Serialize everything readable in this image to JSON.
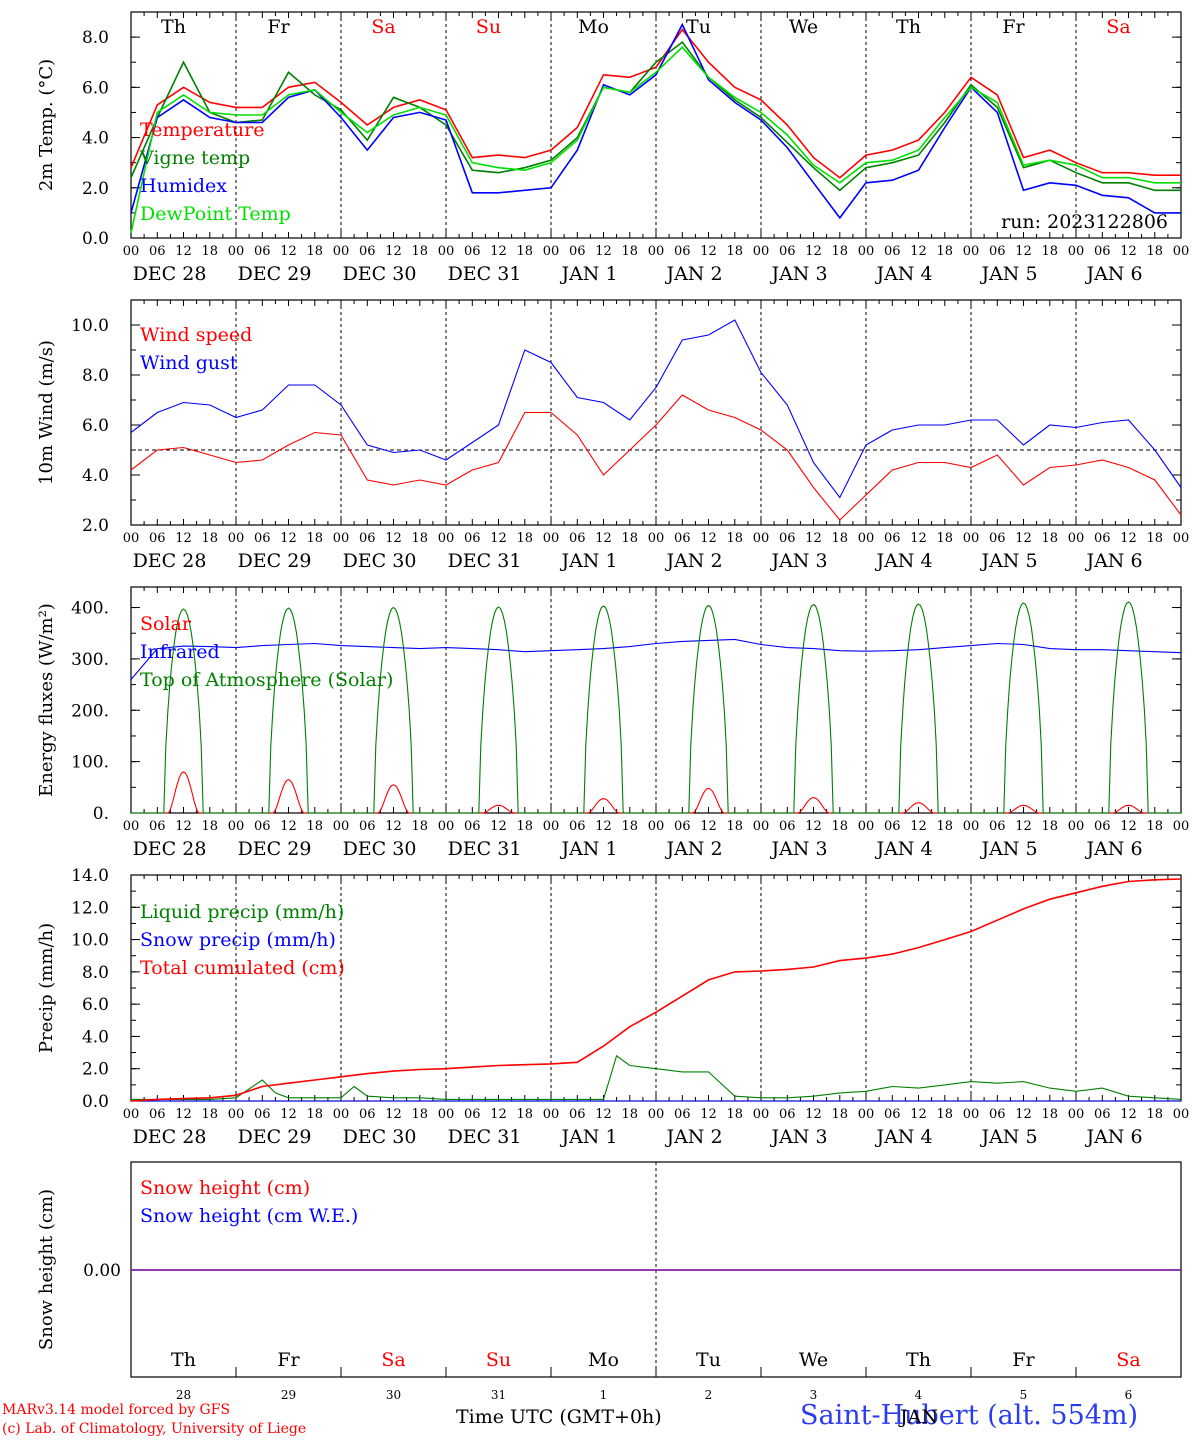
{
  "colors": {
    "red": "#ff0000",
    "darkgreen": "#008000",
    "blue": "#0000ff",
    "lightgreen": "#00e000",
    "axis": "#000000",
    "purple": "#8020a0"
  },
  "days": {
    "weekdays": [
      "Th",
      "Fr",
      "Sa",
      "Su",
      "Mo",
      "Tu",
      "We",
      "Th",
      "Fr",
      "Sa"
    ],
    "weekend_flags": [
      false,
      false,
      true,
      true,
      false,
      false,
      false,
      false,
      false,
      true
    ],
    "hours": [
      "00",
      "06",
      "12",
      "18"
    ],
    "date_labels": [
      "DEC 28",
      "DEC 29",
      "DEC 30",
      "DEC 31",
      "JAN 1",
      "JAN 2",
      "JAN 3",
      "JAN 4",
      "JAN 5",
      "JAN 6"
    ],
    "day_numbers": [
      "28",
      "29",
      "30",
      "31",
      "1",
      "2",
      "3",
      "4",
      "5",
      "6"
    ]
  },
  "run_label": "run: 2023122806",
  "footer": {
    "credit_line1": "MARv3.14 model forced by GFS",
    "credit_line2": "(c) Lab. of Climatology, University of Liege",
    "xlabel": "Time UTC (GMT+0h)",
    "month": "JAN",
    "station": "Saint-Hubert (alt. 554m)"
  },
  "chart_data": [
    {
      "type": "line",
      "ylabel": "2m Temp. (°C)",
      "ylim": [
        0,
        9
      ],
      "yticks": [
        0,
        2,
        4,
        6,
        8
      ],
      "tick_labels": [
        "0.0",
        "2.0",
        "4.0",
        "6.0",
        "8.0"
      ],
      "x_unit": "hours since DEC 28 00 UTC",
      "x_range": [
        0,
        240
      ],
      "series": [
        {
          "name": "Temperature",
          "color": "red",
          "x": [
            0,
            6,
            12,
            18,
            24,
            30,
            36,
            42,
            48,
            54,
            60,
            66,
            72,
            78,
            84,
            90,
            96,
            102,
            108,
            114,
            120,
            126,
            132,
            138,
            144,
            150,
            156,
            162,
            168,
            174,
            180,
            186,
            192,
            198,
            204,
            210,
            216,
            222,
            228,
            234,
            240
          ],
          "values": [
            2.8,
            5.3,
            6.0,
            5.4,
            5.2,
            5.2,
            6.0,
            6.2,
            5.4,
            4.5,
            5.2,
            5.5,
            5.1,
            3.2,
            3.3,
            3.2,
            3.5,
            4.4,
            6.5,
            6.4,
            6.8,
            8.3,
            7.0,
            6.0,
            5.5,
            4.5,
            3.2,
            2.4,
            3.3,
            3.5,
            3.9,
            5.0,
            6.4,
            5.7,
            3.2,
            3.5,
            3.0,
            2.6,
            2.6,
            2.5,
            2.5
          ]
        },
        {
          "name": "Vigne temp",
          "color": "darkgreen",
          "x": [
            0,
            6,
            12,
            18,
            24,
            30,
            36,
            42,
            48,
            54,
            60,
            66,
            72,
            78,
            84,
            90,
            96,
            102,
            108,
            114,
            120,
            126,
            132,
            138,
            144,
            150,
            156,
            162,
            168,
            174,
            180,
            186,
            192,
            198,
            204,
            210,
            216,
            222,
            228,
            234,
            240
          ],
          "values": [
            2.4,
            4.8,
            7.0,
            5.0,
            4.6,
            4.7,
            6.6,
            5.7,
            5.1,
            3.9,
            5.6,
            5.2,
            4.5,
            2.7,
            2.6,
            2.8,
            3.1,
            4.0,
            6.0,
            5.8,
            7.0,
            7.8,
            6.4,
            5.5,
            4.8,
            3.8,
            2.8,
            1.9,
            2.8,
            3.0,
            3.3,
            4.6,
            6.1,
            5.2,
            2.8,
            3.1,
            2.6,
            2.2,
            2.2,
            1.9,
            1.9
          ]
        },
        {
          "name": "Humidex",
          "color": "blue",
          "x": [
            0,
            6,
            12,
            18,
            24,
            30,
            36,
            42,
            48,
            54,
            60,
            66,
            72,
            78,
            84,
            90,
            96,
            102,
            108,
            114,
            120,
            126,
            132,
            138,
            144,
            150,
            156,
            162,
            168,
            174,
            180,
            186,
            192,
            198,
            204,
            210,
            216,
            222,
            228,
            234,
            240
          ],
          "values": [
            1.0,
            4.8,
            5.5,
            4.8,
            4.6,
            4.6,
            5.6,
            5.9,
            4.8,
            3.5,
            4.8,
            5.0,
            4.7,
            1.8,
            1.8,
            1.9,
            2.0,
            3.5,
            6.1,
            5.7,
            6.5,
            8.5,
            6.3,
            5.4,
            4.7,
            3.6,
            2.2,
            0.8,
            2.2,
            2.3,
            2.7,
            4.4,
            6.0,
            5.0,
            1.9,
            2.2,
            2.1,
            1.7,
            1.6,
            1.0,
            1.0
          ]
        },
        {
          "name": "DewPoint Temp",
          "color": "lightgreen",
          "x": [
            0,
            6,
            12,
            18,
            24,
            30,
            36,
            42,
            48,
            54,
            60,
            66,
            72,
            78,
            84,
            90,
            96,
            102,
            108,
            114,
            120,
            126,
            132,
            138,
            144,
            150,
            156,
            162,
            168,
            174,
            180,
            186,
            192,
            198,
            204,
            210,
            216,
            222,
            228,
            234,
            240
          ],
          "values": [
            0.2,
            5.0,
            5.7,
            5.0,
            4.9,
            4.9,
            5.7,
            5.9,
            5.0,
            4.2,
            4.9,
            5.2,
            4.9,
            3.0,
            2.8,
            2.7,
            3.0,
            3.9,
            6.0,
            5.8,
            6.6,
            7.6,
            6.4,
            5.6,
            5.0,
            4.1,
            2.9,
            2.2,
            3.0,
            3.1,
            3.5,
            4.8,
            6.0,
            5.4,
            2.9,
            3.1,
            2.9,
            2.4,
            2.4,
            2.2,
            2.2
          ]
        }
      ]
    },
    {
      "type": "line",
      "ylabel": "10m Wind (m/s)",
      "ylim": [
        2,
        11
      ],
      "yticks": [
        2,
        4,
        6,
        8,
        10
      ],
      "tick_labels": [
        "2.0",
        "4.0",
        "6.0",
        "8.0",
        "10.0"
      ],
      "reference_line": 5.0,
      "x_unit": "hours since DEC 28 00 UTC",
      "x_range": [
        0,
        240
      ],
      "series": [
        {
          "name": "Wind speed",
          "color": "red",
          "x": [
            0,
            6,
            12,
            18,
            24,
            30,
            36,
            42,
            48,
            54,
            60,
            66,
            72,
            78,
            84,
            90,
            96,
            102,
            108,
            114,
            120,
            126,
            132,
            138,
            144,
            150,
            156,
            162,
            168,
            174,
            180,
            186,
            192,
            198,
            204,
            210,
            216,
            222,
            228,
            234,
            240
          ],
          "values": [
            4.2,
            5.0,
            5.1,
            4.8,
            4.5,
            4.6,
            5.2,
            5.7,
            5.6,
            3.8,
            3.6,
            3.8,
            3.6,
            4.2,
            4.5,
            6.5,
            6.5,
            5.6,
            4.0,
            5.0,
            6.0,
            7.2,
            6.6,
            6.3,
            5.8,
            5.0,
            3.5,
            2.2,
            3.2,
            4.2,
            4.5,
            4.5,
            4.3,
            4.8,
            3.6,
            4.3,
            4.4,
            4.6,
            4.3,
            3.8,
            2.4
          ]
        },
        {
          "name": "Wind gust",
          "color": "blue",
          "x": [
            0,
            6,
            12,
            18,
            24,
            30,
            36,
            42,
            48,
            54,
            60,
            66,
            72,
            78,
            84,
            90,
            96,
            102,
            108,
            114,
            120,
            126,
            132,
            138,
            144,
            150,
            156,
            162,
            168,
            174,
            180,
            186,
            192,
            198,
            204,
            210,
            216,
            222,
            228,
            234,
            240
          ],
          "values": [
            5.7,
            6.5,
            6.9,
            6.8,
            6.3,
            6.6,
            7.6,
            7.6,
            6.8,
            5.2,
            4.9,
            5.0,
            4.6,
            5.3,
            6.0,
            9.0,
            8.5,
            7.1,
            6.9,
            6.2,
            7.5,
            9.4,
            9.6,
            10.2,
            8.1,
            6.8,
            4.5,
            3.1,
            5.2,
            5.8,
            6.0,
            6.0,
            6.2,
            6.2,
            5.2,
            6.0,
            5.9,
            6.1,
            6.2,
            5.0,
            3.5
          ]
        }
      ]
    },
    {
      "type": "line",
      "ylabel": "Energy fluxes (W/m²)",
      "ylim": [
        0,
        440
      ],
      "yticks": [
        0,
        100,
        200,
        300,
        400
      ],
      "tick_labels": [
        "0.",
        "100.",
        "200.",
        "300.",
        "400."
      ],
      "x_unit": "hours since DEC 28 00 UTC",
      "x_range": [
        0,
        240
      ],
      "series": [
        {
          "name": "Solar",
          "color": "red",
          "daily_peaks": [
            80,
            65,
            55,
            15,
            28,
            48,
            30,
            20,
            15,
            15
          ]
        },
        {
          "name": "Infrared",
          "color": "blue",
          "x": [
            0,
            6,
            12,
            18,
            24,
            30,
            36,
            42,
            48,
            54,
            60,
            66,
            72,
            78,
            84,
            90,
            96,
            102,
            108,
            114,
            120,
            126,
            132,
            138,
            144,
            150,
            156,
            162,
            168,
            174,
            180,
            186,
            192,
            198,
            204,
            210,
            216,
            222,
            228,
            234,
            240
          ],
          "values": [
            260,
            320,
            325,
            324,
            322,
            326,
            328,
            330,
            326,
            324,
            322,
            320,
            322,
            320,
            318,
            314,
            316,
            318,
            320,
            324,
            330,
            334,
            336,
            338,
            328,
            322,
            320,
            316,
            315,
            316,
            318,
            322,
            326,
            330,
            328,
            320,
            318,
            318,
            316,
            314,
            312
          ]
        },
        {
          "name": "Top of Atmosphere (Solar)",
          "color": "darkgreen",
          "daily_peaks": [
            397,
            399,
            400,
            401,
            403,
            404,
            406,
            407,
            409,
            411
          ]
        }
      ]
    },
    {
      "type": "line",
      "ylabel": "Precip (mm/h)",
      "ylim": [
        0,
        14
      ],
      "yticks": [
        0,
        2,
        4,
        6,
        8,
        10,
        12,
        14
      ],
      "tick_labels": [
        "0.0",
        "2.0",
        "4.0",
        "6.0",
        "8.0",
        "10.0",
        "12.0",
        "14.0"
      ],
      "x_unit": "hours since DEC 28 00 UTC",
      "x_range": [
        0,
        240
      ],
      "series": [
        {
          "name": "Liquid precip (mm/h)",
          "color": "darkgreen",
          "x": [
            0,
            6,
            12,
            18,
            24,
            30,
            33,
            36,
            42,
            48,
            51,
            54,
            60,
            66,
            72,
            78,
            84,
            90,
            96,
            102,
            108,
            111,
            114,
            120,
            126,
            132,
            138,
            144,
            150,
            156,
            162,
            168,
            174,
            180,
            186,
            192,
            198,
            204,
            210,
            216,
            222,
            228,
            234,
            240
          ],
          "values": [
            0.1,
            0.1,
            0.1,
            0.1,
            0.2,
            1.3,
            0.5,
            0.2,
            0.2,
            0.2,
            0.9,
            0.3,
            0.2,
            0.2,
            0.1,
            0.1,
            0.1,
            0.1,
            0.1,
            0.1,
            0.1,
            2.8,
            2.2,
            2.0,
            1.8,
            1.8,
            0.3,
            0.2,
            0.2,
            0.3,
            0.5,
            0.6,
            0.9,
            0.8,
            1.0,
            1.2,
            1.1,
            1.2,
            0.8,
            0.6,
            0.8,
            0.3,
            0.2,
            0.1
          ]
        },
        {
          "name": "Snow precip (mm/h)",
          "color": "blue",
          "x": [
            0,
            60,
            120,
            180,
            240
          ],
          "values": [
            0.0,
            0.0,
            0.0,
            0.0,
            0.0
          ]
        },
        {
          "name": "Total cumulated (cm)",
          "color": "red",
          "x": [
            0,
            6,
            12,
            18,
            24,
            30,
            36,
            42,
            48,
            54,
            60,
            66,
            72,
            78,
            84,
            90,
            96,
            102,
            108,
            114,
            120,
            126,
            132,
            138,
            144,
            150,
            156,
            162,
            168,
            174,
            180,
            186,
            192,
            198,
            204,
            210,
            216,
            222,
            228,
            234,
            240
          ],
          "values": [
            0.0,
            0.1,
            0.15,
            0.2,
            0.35,
            0.9,
            1.1,
            1.3,
            1.5,
            1.7,
            1.85,
            1.95,
            2.0,
            2.1,
            2.2,
            2.25,
            2.3,
            2.4,
            3.4,
            4.6,
            5.5,
            6.5,
            7.5,
            8.0,
            8.05,
            8.15,
            8.3,
            8.7,
            8.85,
            9.1,
            9.5,
            10.0,
            10.5,
            11.2,
            11.9,
            12.5,
            12.9,
            13.3,
            13.6,
            13.7,
            13.75
          ]
        }
      ]
    },
    {
      "type": "line",
      "ylabel": "Snow height (cm)",
      "yticks": [
        0
      ],
      "tick_labels": [
        "0.00"
      ],
      "x_unit": "hours since DEC 28 00 UTC",
      "x_range": [
        0,
        240
      ],
      "series": [
        {
          "name": "Snow height (cm)",
          "color": "red",
          "x": [
            0,
            240
          ],
          "values": [
            0.0,
            0.0
          ]
        },
        {
          "name": "Snow height (cm W.E.)",
          "color": "blue",
          "x": [
            0,
            240
          ],
          "values": [
            0.0,
            0.0
          ]
        }
      ]
    }
  ]
}
